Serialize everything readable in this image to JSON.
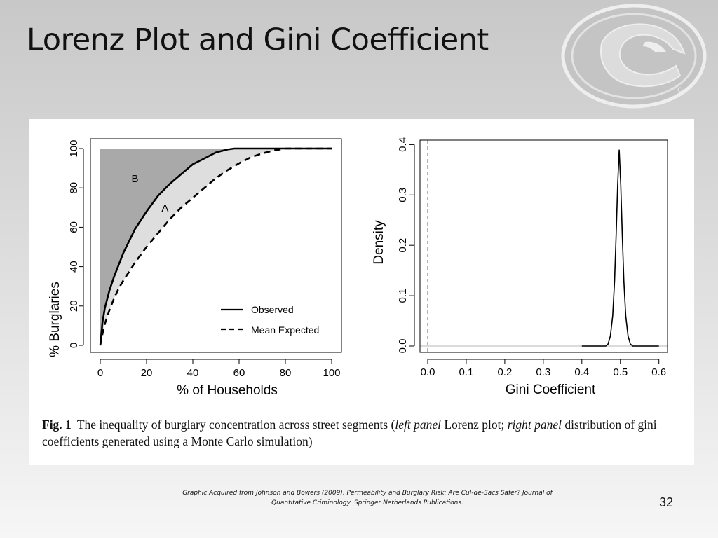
{
  "slide": {
    "title": "Lorenz Plot and Gini Coefficient",
    "credit_line1": "Graphic Acquired from Johnson and Bowers (2009). Permeability and Burglary Risk: Are Cul-de-Sacs Safer? Journal of",
    "credit_line2": "Quantitative Criminology. Springer Netherlands Publications.",
    "slide_number": "32"
  },
  "caption": {
    "fig_label": "Fig. 1",
    "part1": "The inequality of burglary concentration across street segments (",
    "left_panel": "left panel",
    "part2": " Lorenz plot; ",
    "right_panel": "right panel",
    "part3": " distribution of gini coefficients generated using a Monte Carlo simulation)"
  },
  "colors": {
    "area_b": "#a9a9a9",
    "area_a": "#dedede",
    "line": "#000000"
  },
  "chart_data": [
    {
      "type": "line",
      "panel": "left",
      "xlabel": "% of Households",
      "ylabel": "% Burglaries",
      "xlim": [
        0,
        100
      ],
      "ylim": [
        0,
        100
      ],
      "xticks": [
        "0",
        "20",
        "40",
        "60",
        "80",
        "100"
      ],
      "yticks": [
        "0",
        "20",
        "40",
        "60",
        "80",
        "100"
      ],
      "area_labels": [
        "B",
        "A"
      ],
      "legend": {
        "placement": "bottom-right",
        "entries": [
          "Observed",
          "Mean Expected"
        ]
      },
      "series": [
        {
          "name": "Observed",
          "style": "solid",
          "x": [
            0,
            1,
            2,
            4,
            6,
            8,
            10,
            15,
            20,
            25,
            30,
            35,
            40,
            45,
            50,
            55,
            58,
            60,
            70,
            80,
            90,
            100
          ],
          "y": [
            0,
            12,
            19,
            28,
            35,
            41,
            47,
            59,
            68,
            76,
            82,
            87,
            92,
            95,
            98,
            99.5,
            100,
            100,
            100,
            100,
            100,
            100
          ]
        },
        {
          "name": "Mean Expected",
          "style": "dashed",
          "x": [
            0,
            1,
            2,
            4,
            6,
            8,
            10,
            15,
            20,
            25,
            30,
            35,
            40,
            45,
            50,
            55,
            60,
            65,
            70,
            75,
            80,
            90,
            100
          ],
          "y": [
            0,
            6,
            11,
            18,
            24,
            29,
            33,
            42,
            50,
            57,
            64,
            70,
            75,
            80,
            85,
            89,
            92.5,
            95.5,
            97.5,
            99,
            100,
            100,
            100
          ]
        }
      ]
    },
    {
      "type": "line",
      "panel": "right",
      "xlabel": "Gini Coefficient",
      "ylabel": "Density",
      "xlim": [
        -0.01,
        0.62
      ],
      "ylim": [
        -0.005,
        0.41
      ],
      "xticks": [
        "0.0",
        "0.1",
        "0.2",
        "0.3",
        "0.4",
        "0.5",
        "0.6"
      ],
      "yticks": [
        "0.0",
        "0.1",
        "0.2",
        "0.3",
        "0.4"
      ],
      "reference_line_x": 0.0,
      "series": [
        {
          "name": "",
          "peak_x": 0.497,
          "peak_density": 0.39,
          "x": [
            0.4,
            0.462,
            0.468,
            0.474,
            0.48,
            0.485,
            0.489,
            0.493,
            0.497,
            0.501,
            0.505,
            0.509,
            0.514,
            0.52,
            0.526,
            0.532,
            0.6
          ],
          "y": [
            0.0,
            0.0,
            0.004,
            0.02,
            0.06,
            0.13,
            0.22,
            0.32,
            0.39,
            0.32,
            0.22,
            0.13,
            0.06,
            0.02,
            0.004,
            0.0,
            0.0
          ]
        }
      ]
    }
  ]
}
